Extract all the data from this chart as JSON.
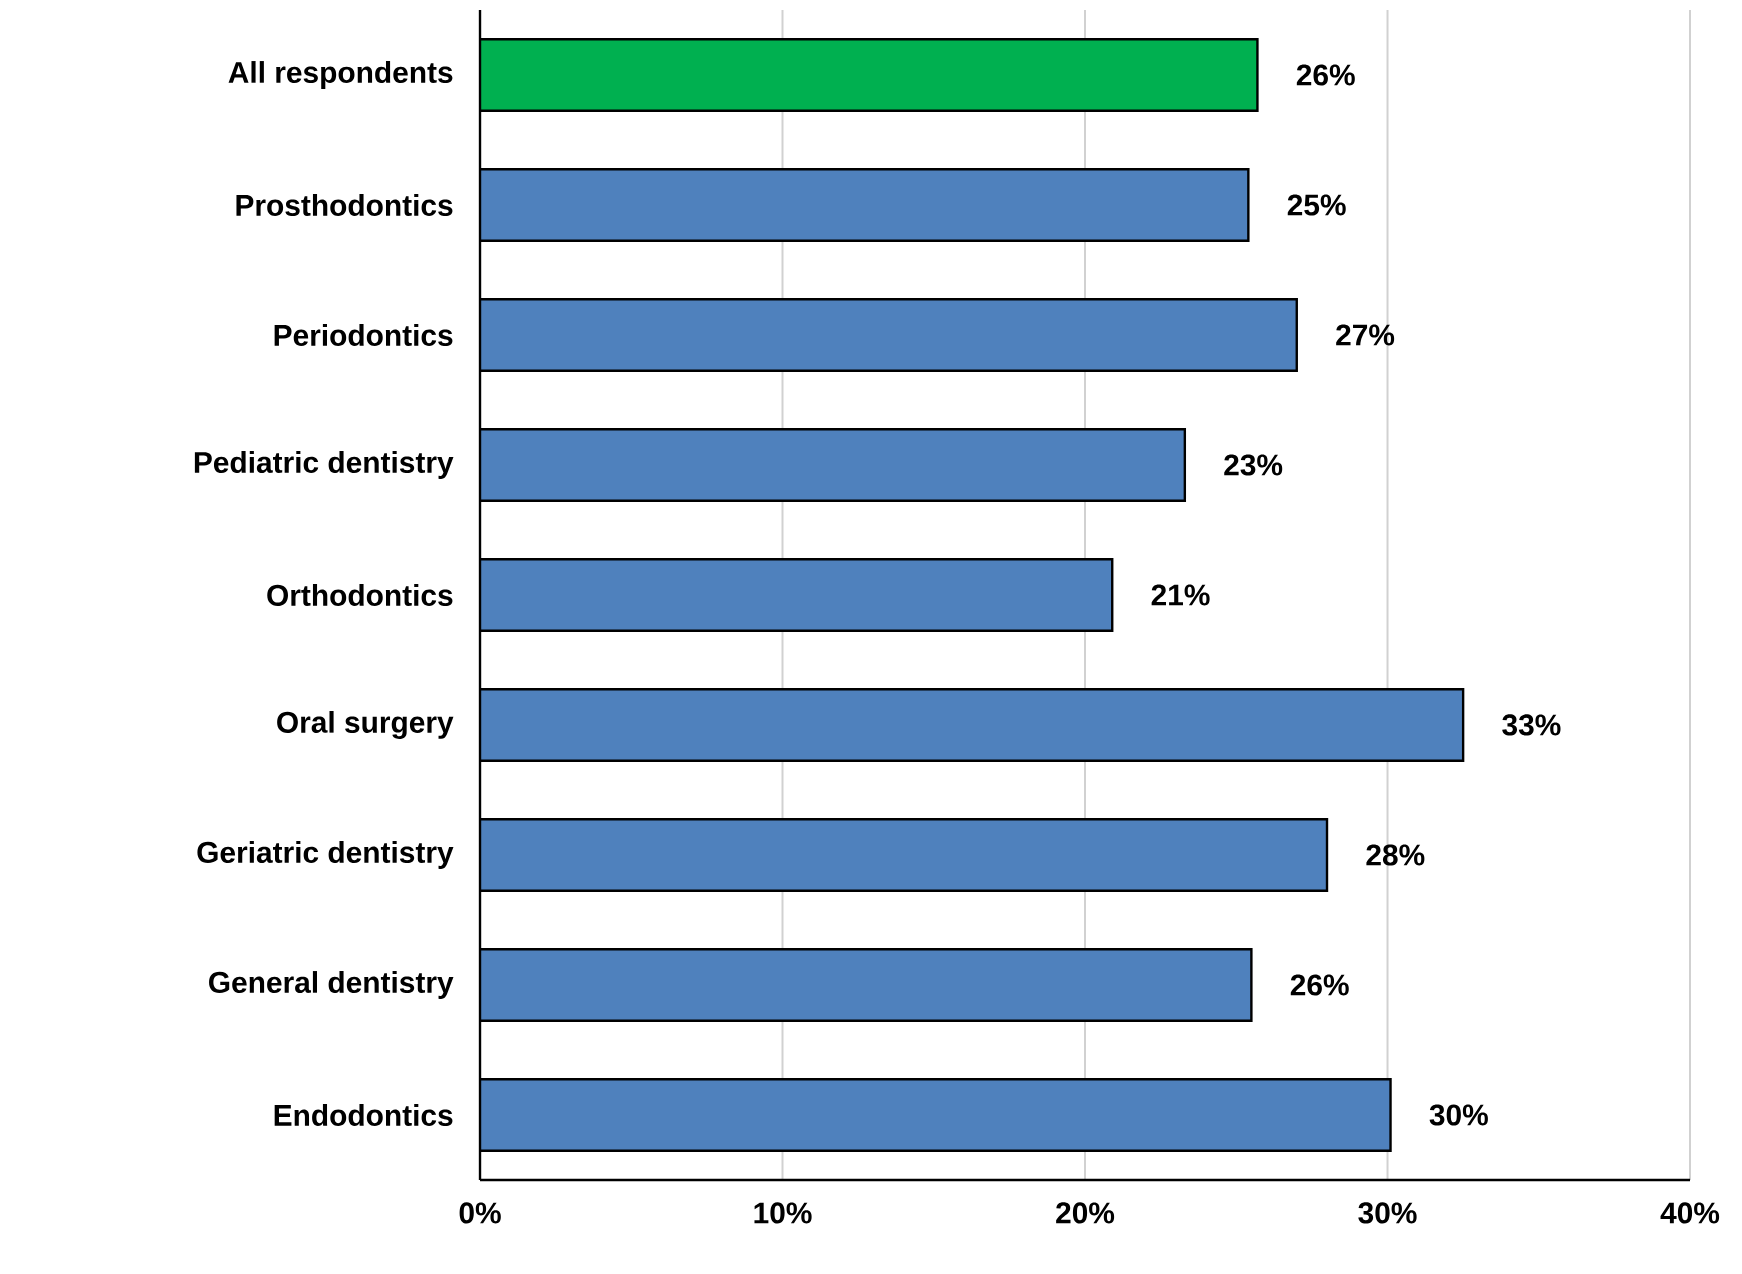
{
  "chart_data": {
    "type": "bar",
    "orientation": "horizontal",
    "categories": [
      "All respondents",
      "Prosthodontics",
      "Periodontics",
      "Pediatric dentistry",
      "Orthodontics",
      "Oral surgery",
      "Geriatric dentistry",
      "General dentistry",
      "Endodontics"
    ],
    "values": [
      25.7,
      25.4,
      27.0,
      23.3,
      20.9,
      32.5,
      28.0,
      25.5,
      30.1
    ],
    "value_labels": [
      "26%",
      "25%",
      "27%",
      "23%",
      "21%",
      "33%",
      "28%",
      "26%",
      "30%"
    ],
    "colors": [
      "#00b050",
      "#4f81bd",
      "#4f81bd",
      "#4f81bd",
      "#4f81bd",
      "#4f81bd",
      "#4f81bd",
      "#4f81bd",
      "#4f81bd"
    ],
    "xlim": [
      0,
      40
    ],
    "xticks": [
      {
        "value": 0,
        "label": "0%"
      },
      {
        "value": 10,
        "label": "10%"
      },
      {
        "value": 20,
        "label": "20%"
      },
      {
        "value": 30,
        "label": "30%"
      },
      {
        "value": 40,
        "label": "40%"
      }
    ],
    "grid": "x"
  }
}
